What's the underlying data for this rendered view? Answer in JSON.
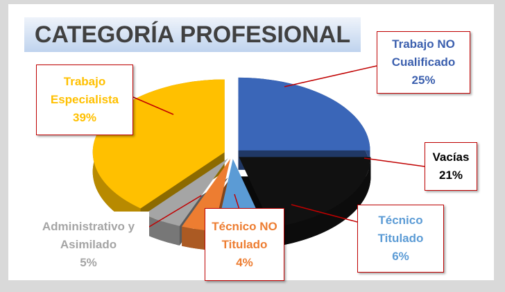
{
  "chart_data": {
    "type": "pie",
    "title": "CATEGORÍA PROFESIONAL",
    "categories": [
      "Trabajo NO Cualificado",
      "Vacías",
      "Técnico Titulado",
      "Técnico NO Titulado",
      "Administrativo y Asimilado",
      "Trabajo Especialista"
    ],
    "values": [
      25,
      21,
      6,
      4,
      5,
      39
    ],
    "value_labels": [
      "25%",
      "21%",
      "6%",
      "4%",
      "5%",
      "39%"
    ],
    "colors": [
      "#3a66b8",
      "#111111",
      "#5b9bd5",
      "#ed7d31",
      "#a5a5a5",
      "#ffc000"
    ]
  }
}
